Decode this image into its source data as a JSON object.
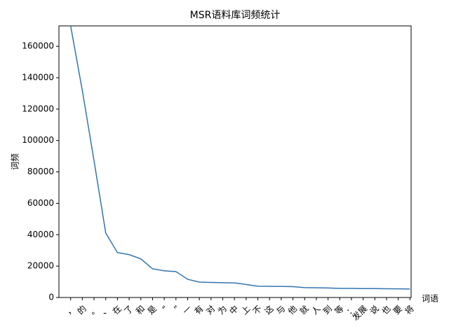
{
  "chart_data": {
    "type": "line",
    "title": "MSR语料库词频统计",
    "x_label": "词语",
    "y_label": "词频",
    "categories": [
      "，",
      "的",
      "。",
      "、",
      "在",
      "了",
      "和",
      "是",
      "“",
      "”",
      "一",
      "有",
      "对",
      "为",
      "中",
      "上",
      "不",
      "这",
      "与",
      "他",
      "就",
      "人",
      "到",
      "等",
      "：",
      "发展",
      "说",
      "也",
      "要",
      "将"
    ],
    "values": [
      173000,
      131800,
      87100,
      41100,
      28600,
      27300,
      24600,
      18300,
      17000,
      16500,
      11600,
      9800,
      9600,
      9400,
      9300,
      8300,
      7200,
      7100,
      7100,
      6900,
      6300,
      6200,
      6100,
      5800,
      5800,
      5700,
      5700,
      5600,
      5500,
      5400
    ],
    "color": "#3274b0",
    "ylim": [
      0,
      173000
    ],
    "yticks": [
      0,
      20000,
      40000,
      60000,
      80000,
      100000,
      120000,
      140000,
      160000
    ]
  }
}
